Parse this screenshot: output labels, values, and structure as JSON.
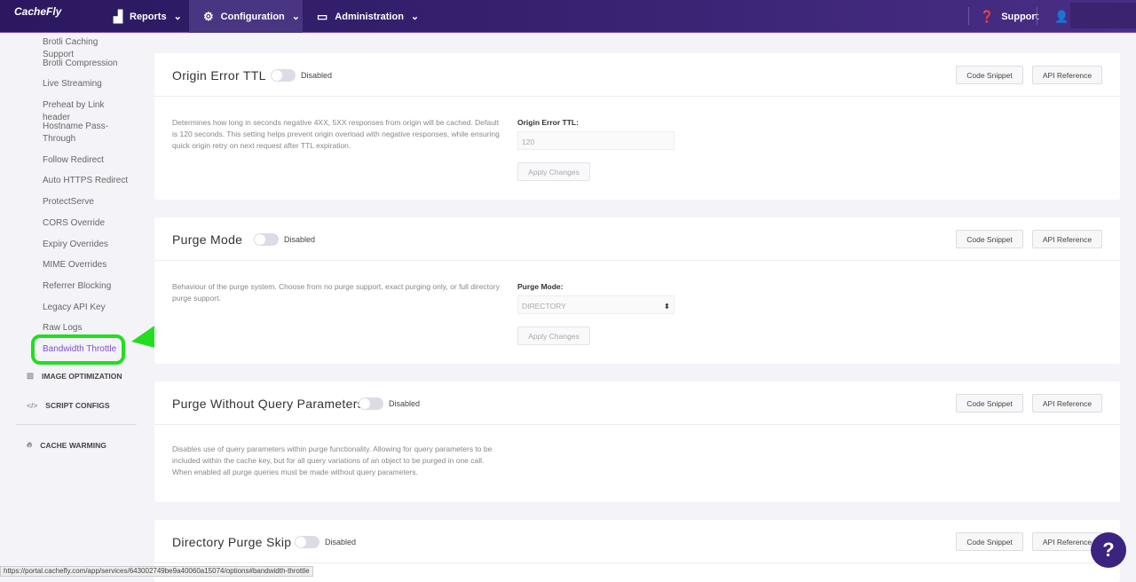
{
  "header": {
    "logo": "CacheFly",
    "nav": [
      {
        "label": "Reports",
        "icon": "bar-chart-icon"
      },
      {
        "label": "Configuration",
        "icon": "gear-icon"
      },
      {
        "label": "Administration",
        "icon": "monitor-icon"
      }
    ],
    "support": "Support"
  },
  "sidebar": {
    "items": [
      "Brotli Caching Support",
      "Brotli Compression",
      "Live Streaming",
      "Preheat by Link header",
      "Hostname Pass-Through",
      "Follow Redirect",
      "Auto HTTPS Redirect",
      "ProtectServe",
      "CORS Override",
      "Expiry Overrides",
      "MIME Overrides",
      "Referrer Blocking",
      "Legacy API Key",
      "Raw Logs",
      "Bandwidth Throttle"
    ],
    "active": "Bandwidth Throttle",
    "sections": [
      "IMAGE OPTIMIZATION",
      "SCRIPT CONFIGS",
      "CACHE WARMING"
    ]
  },
  "cards": [
    {
      "title": "Origin Error TTL",
      "status": "Disabled",
      "code_snippet": "Code Snippet",
      "api_reference": "API Reference",
      "description": "Determines how long in seconds negative 4XX, 5XX responses from origin will be cached. Default is 120 seconds. This setting helps prevent origin overload with negative responses, while ensuring quick origin retry on next request after TTL expiration.",
      "field_label": "Origin Error TTL:",
      "field_value": "120",
      "apply": "Apply Changes"
    },
    {
      "title": "Purge Mode",
      "status": "Disabled",
      "code_snippet": "Code Snippet",
      "api_reference": "API Reference",
      "description": "Behaviour of the purge system. Choose from no purge support, exact purging only, or full directory purge support.",
      "field_label": "Purge Mode:",
      "field_value": "DIRECTORY",
      "apply": "Apply Changes"
    },
    {
      "title": "Purge Without Query Parameters",
      "status": "Disabled",
      "code_snippet": "Code Snippet",
      "api_reference": "API Reference",
      "description": "Disables use of query parameters within purge functionality. Allowing for query parameters to be included within the cache key, but for all query variations of an object to be purged in one call. When enabled all purge queries must be made without query parameters."
    },
    {
      "title": "Directory Purge Skip",
      "status": "Disabled",
      "code_snippet": "Code Snippet",
      "api_reference": "API Reference"
    }
  ],
  "status_url": "https://portal.cachefly.com/app/services/643002749be9a40060a15074/options#bandwidth-throttle",
  "colors": {
    "header": "#2b1860",
    "active": "#7b52c8",
    "annotation": "#22dd22"
  }
}
